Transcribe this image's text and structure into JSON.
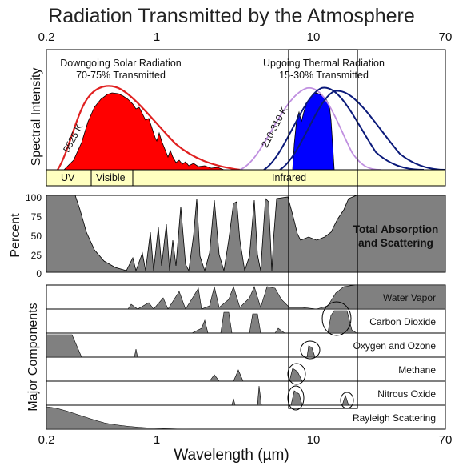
{
  "title": "Radiation Transmitted by the Atmosphere",
  "x_axis": {
    "label": "Wavelength (µm)",
    "ticks_top": [
      "0.2",
      "1",
      "10",
      "70"
    ],
    "ticks_bottom": [
      "0.2",
      "1",
      "10",
      "70"
    ]
  },
  "spectral_panel": {
    "ylabel": "Spectral Intensity",
    "solar_caption": [
      "Downgoing Solar Radiation",
      "70-75% Transmitted"
    ],
    "thermal_caption": [
      "Upgoing Thermal Radiation",
      "15-30% Transmitted"
    ],
    "solar_temp": "5525 K",
    "thermal_temp": "210-310 K",
    "bands": [
      "UV",
      "Visible",
      "Infrared"
    ],
    "colors": {
      "solar": "#ff0000",
      "thermal": "#0000ff",
      "band_fill": "#ffffc0"
    }
  },
  "absorption_panel": {
    "ylabel": "Percent",
    "yticks": [
      "100",
      "75",
      "50",
      "25",
      "0"
    ],
    "label": [
      "Total Absorption",
      "and Scattering"
    ],
    "fill": "#808080"
  },
  "components_panel": {
    "ylabel": "Major Components",
    "rows": [
      "Water Vapor",
      "Carbon Dioxide",
      "Oxygen and Ozone",
      "Methane",
      "Nitrous Oxide",
      "Rayleigh Scattering"
    ]
  }
}
